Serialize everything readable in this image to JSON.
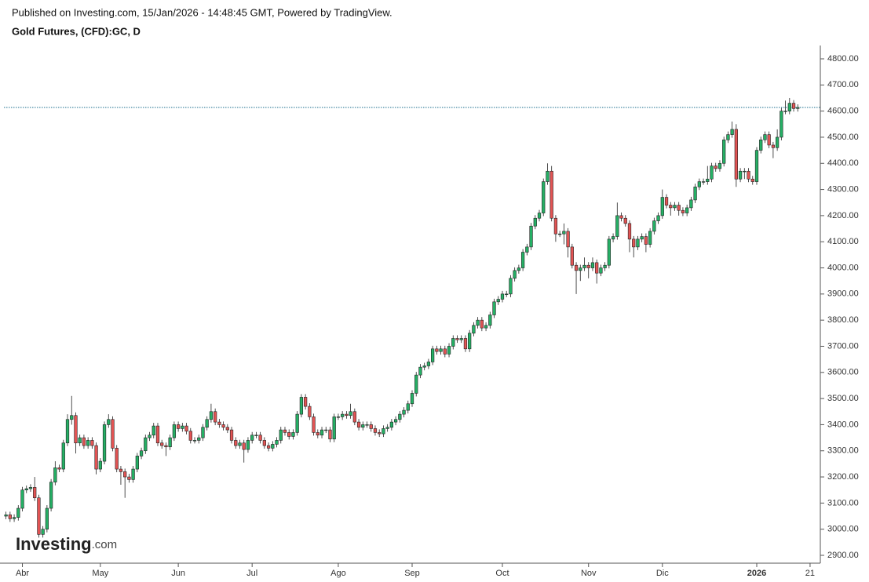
{
  "header": {
    "published": "Published on Investing.com, 15/Jan/2026 - 14:48:45 GMT, Powered by TradingView.",
    "instrument": "Gold Futures, (CFD):GC, D"
  },
  "watermark": {
    "main": "Investing",
    "suffix": ".com"
  },
  "chart_data": {
    "type": "candlestick",
    "up_color": "#25b065",
    "down_color": "#e35454",
    "open": [
      3050,
      3055,
      3040,
      3045,
      3080,
      3150,
      3155,
      3160,
      3120,
      2980,
      3000,
      3080,
      3180,
      3235,
      3230,
      3330,
      3420,
      3435,
      3330,
      3350,
      3320,
      3340,
      3320,
      3230,
      3260,
      3400,
      3420,
      3310,
      3230,
      3220,
      3200,
      3190,
      3230,
      3280,
      3300,
      3350,
      3360,
      3395,
      3330,
      3320,
      3315,
      3350,
      3400,
      3385,
      3395,
      3375,
      3340,
      3340,
      3350,
      3390,
      3420,
      3450,
      3410,
      3400,
      3390,
      3380,
      3340,
      3320,
      3330,
      3305,
      3340,
      3360,
      3360,
      3340,
      3320,
      3310,
      3325,
      3340,
      3380,
      3370,
      3355,
      3370,
      3440,
      3505,
      3470,
      3430,
      3370,
      3360,
      3380,
      3380,
      3345,
      3430,
      3430,
      3440,
      3435,
      3450,
      3410,
      3390,
      3400,
      3400,
      3385,
      3370,
      3365,
      3385,
      3390,
      3410,
      3420,
      3440,
      3455,
      3480,
      3520,
      3590,
      3620,
      3625,
      3640,
      3690,
      3680,
      3690,
      3670,
      3700,
      3730,
      3725,
      3730,
      3690,
      3750,
      3780,
      3800,
      3770,
      3780,
      3820,
      3870,
      3880,
      3900,
      3900,
      3960,
      3990,
      4000,
      4060,
      4080,
      4160,
      4190,
      4210,
      4330,
      4370,
      4190,
      4130,
      4130,
      4140,
      4080,
      4010,
      3990,
      4000,
      4010,
      4000,
      4020,
      3980,
      4000,
      4010,
      4110,
      4120,
      4200,
      4190,
      4170,
      4110,
      4080,
      4110,
      4120,
      4090,
      4140,
      4180,
      4200,
      4270,
      4240,
      4230,
      4240,
      4220,
      4210,
      4230,
      4260,
      4310,
      4330,
      4330,
      4340,
      4390,
      4380,
      4400,
      4490,
      4510,
      4530,
      4340,
      4370,
      4370,
      4340,
      4330,
      4450,
      4490,
      4510,
      4470,
      4460,
      4500,
      4600,
      4600,
      4630,
      4610
    ],
    "high": [
      3067,
      3067,
      3057,
      3092,
      3162,
      3167,
      3172,
      3200,
      3132,
      3012,
      3092,
      3192,
      3260,
      3247,
      3342,
      3440,
      3510,
      3447,
      3362,
      3362,
      3352,
      3352,
      3332,
      3272,
      3412,
      3440,
      3432,
      3322,
      3242,
      3232,
      3212,
      3242,
      3292,
      3312,
      3362,
      3372,
      3407,
      3407,
      3342,
      3332,
      3362,
      3412,
      3412,
      3407,
      3407,
      3387,
      3352,
      3362,
      3402,
      3432,
      3480,
      3462,
      3422,
      3412,
      3402,
      3392,
      3352,
      3342,
      3342,
      3352,
      3372,
      3372,
      3372,
      3352,
      3332,
      3337,
      3352,
      3392,
      3392,
      3382,
      3382,
      3452,
      3517,
      3517,
      3482,
      3442,
      3382,
      3392,
      3392,
      3392,
      3442,
      3442,
      3452,
      3452,
      3480,
      3462,
      3422,
      3412,
      3412,
      3412,
      3397,
      3382,
      3397,
      3402,
      3422,
      3432,
      3452,
      3467,
      3492,
      3532,
      3602,
      3632,
      3637,
      3652,
      3702,
      3702,
      3702,
      3702,
      3712,
      3742,
      3742,
      3742,
      3742,
      3762,
      3792,
      3812,
      3812,
      3792,
      3832,
      3882,
      3892,
      3912,
      3912,
      3972,
      4002,
      4012,
      4072,
      4092,
      4172,
      4202,
      4222,
      4342,
      4400,
      4390,
      4202,
      4142,
      4170,
      4152,
      4092,
      4022,
      4012,
      4040,
      4022,
      4040,
      4032,
      4012,
      4022,
      4122,
      4132,
      4250,
      4212,
      4202,
      4182,
      4122,
      4122,
      4132,
      4132,
      4152,
      4192,
      4212,
      4300,
      4282,
      4252,
      4252,
      4252,
      4232,
      4242,
      4272,
      4322,
      4342,
      4342,
      4390,
      4402,
      4402,
      4412,
      4502,
      4522,
      4560,
      4550,
      4382,
      4382,
      4382,
      4352,
      4462,
      4502,
      4522,
      4522,
      4482,
      4530,
      4612,
      4640,
      4650,
      4642,
      4626
    ],
    "low": [
      3038,
      3028,
      3028,
      3033,
      3068,
      3138,
      3143,
      3108,
      2968,
      2968,
      2988,
      3068,
      3168,
      3218,
      3218,
      3318,
      3400,
      3290,
      3318,
      3308,
      3308,
      3308,
      3210,
      3218,
      3248,
      3388,
      3298,
      3218,
      3170,
      3120,
      3178,
      3178,
      3218,
      3268,
      3288,
      3338,
      3348,
      3318,
      3308,
      3280,
      3303,
      3338,
      3373,
      3373,
      3363,
      3328,
      3328,
      3328,
      3338,
      3378,
      3408,
      3398,
      3388,
      3378,
      3368,
      3328,
      3308,
      3308,
      3255,
      3293,
      3328,
      3348,
      3328,
      3308,
      3298,
      3298,
      3313,
      3328,
      3358,
      3343,
      3343,
      3358,
      3428,
      3458,
      3418,
      3358,
      3348,
      3348,
      3368,
      3333,
      3333,
      3418,
      3418,
      3423,
      3423,
      3398,
      3378,
      3378,
      3388,
      3373,
      3358,
      3353,
      3353,
      3373,
      3378,
      3398,
      3408,
      3428,
      3443,
      3468,
      3508,
      3578,
      3608,
      3613,
      3628,
      3668,
      3668,
      3658,
      3658,
      3688,
      3713,
      3713,
      3678,
      3678,
      3738,
      3768,
      3758,
      3758,
      3768,
      3808,
      3858,
      3868,
      3888,
      3888,
      3948,
      3978,
      3988,
      4048,
      4068,
      4148,
      4178,
      4198,
      4318,
      4178,
      4100,
      4118,
      4090,
      4040,
      3998,
      3900,
      3950,
      3988,
      3960,
      3988,
      3940,
      3968,
      3988,
      3998,
      4098,
      4108,
      4178,
      4158,
      4060,
      4040,
      4068,
      4098,
      4060,
      4078,
      4128,
      4168,
      4188,
      4228,
      4200,
      4218,
      4200,
      4198,
      4198,
      4218,
      4248,
      4298,
      4318,
      4318,
      4328,
      4368,
      4368,
      4388,
      4478,
      4498,
      4310,
      4328,
      4340,
      4328,
      4318,
      4318,
      4438,
      4478,
      4458,
      4420,
      4448,
      4488,
      4588,
      4588,
      4598,
      4598
    ],
    "close": [
      3055,
      3040,
      3045,
      3080,
      3150,
      3155,
      3160,
      3120,
      2980,
      3000,
      3080,
      3180,
      3235,
      3230,
      3330,
      3420,
      3435,
      3330,
      3350,
      3320,
      3340,
      3320,
      3230,
      3260,
      3400,
      3420,
      3310,
      3230,
      3220,
      3200,
      3190,
      3230,
      3280,
      3300,
      3350,
      3360,
      3395,
      3330,
      3320,
      3315,
      3350,
      3400,
      3385,
      3395,
      3375,
      3340,
      3340,
      3350,
      3390,
      3420,
      3450,
      3410,
      3400,
      3390,
      3380,
      3340,
      3320,
      3330,
      3305,
      3340,
      3360,
      3360,
      3340,
      3320,
      3310,
      3325,
      3340,
      3380,
      3370,
      3355,
      3370,
      3440,
      3505,
      3470,
      3430,
      3370,
      3360,
      3380,
      3380,
      3345,
      3430,
      3430,
      3440,
      3435,
      3450,
      3410,
      3390,
      3400,
      3400,
      3385,
      3370,
      3365,
      3385,
      3390,
      3410,
      3420,
      3440,
      3455,
      3480,
      3520,
      3590,
      3620,
      3625,
      3640,
      3690,
      3680,
      3690,
      3670,
      3700,
      3730,
      3725,
      3730,
      3690,
      3750,
      3780,
      3800,
      3770,
      3780,
      3820,
      3870,
      3880,
      3900,
      3900,
      3960,
      3990,
      4000,
      4060,
      4080,
      4160,
      4190,
      4210,
      4330,
      4370,
      4190,
      4130,
      4130,
      4140,
      4080,
      4010,
      3990,
      4000,
      4010,
      4000,
      4020,
      3980,
      4000,
      4010,
      4110,
      4120,
      4200,
      4190,
      4170,
      4110,
      4080,
      4110,
      4120,
      4090,
      4140,
      4180,
      4200,
      4270,
      4240,
      4230,
      4240,
      4220,
      4210,
      4230,
      4260,
      4310,
      4330,
      4330,
      4340,
      4390,
      4380,
      4400,
      4490,
      4510,
      4530,
      4340,
      4370,
      4370,
      4340,
      4330,
      4450,
      4490,
      4510,
      4470,
      4460,
      4500,
      4600,
      4600,
      4630,
      4610,
      4614
    ],
    "xlim": [
      -0.5,
      198.5
    ],
    "xticks": [
      {
        "value": 4,
        "label": "Abr"
      },
      {
        "value": 23,
        "label": "May"
      },
      {
        "value": 42,
        "label": "Jun"
      },
      {
        "value": 60,
        "label": "Jul"
      },
      {
        "value": 81,
        "label": "Ago"
      },
      {
        "value": 99,
        "label": "Sep"
      },
      {
        "value": 121,
        "label": "Oct"
      },
      {
        "value": 142,
        "label": "Nov"
      },
      {
        "value": 160,
        "label": "Dic"
      },
      {
        "value": 183,
        "label": "2026"
      },
      {
        "value": 196,
        "label": "21"
      }
    ],
    "ylim": [
      2900,
      4800
    ],
    "yticks": [
      {
        "value": 2900,
        "label": "2900.00"
      },
      {
        "value": 3000,
        "label": "3000.00"
      },
      {
        "value": 3100,
        "label": "3100.00"
      },
      {
        "value": 3200,
        "label": "3200.00"
      },
      {
        "value": 3300,
        "label": "3300.00"
      },
      {
        "value": 3400,
        "label": "3400.00"
      },
      {
        "value": 3500,
        "label": "3500.00"
      },
      {
        "value": 3600,
        "label": "3600.00"
      },
      {
        "value": 3700,
        "label": "3700.00"
      },
      {
        "value": 3800,
        "label": "3800.00"
      },
      {
        "value": 3900,
        "label": "3900.00"
      },
      {
        "value": 4000,
        "label": "4000.00"
      },
      {
        "value": 4100,
        "label": "4100.00"
      },
      {
        "value": 4200,
        "label": "4200.00"
      },
      {
        "value": 4300,
        "label": "4300.00"
      },
      {
        "value": 4400,
        "label": "4400.00"
      },
      {
        "value": 4500,
        "label": "4500.00"
      },
      {
        "value": 4600,
        "label": "4600.00"
      },
      {
        "value": 4700,
        "label": "4700.00"
      },
      {
        "value": 4800,
        "label": "4800.00"
      }
    ],
    "grid": false
  }
}
